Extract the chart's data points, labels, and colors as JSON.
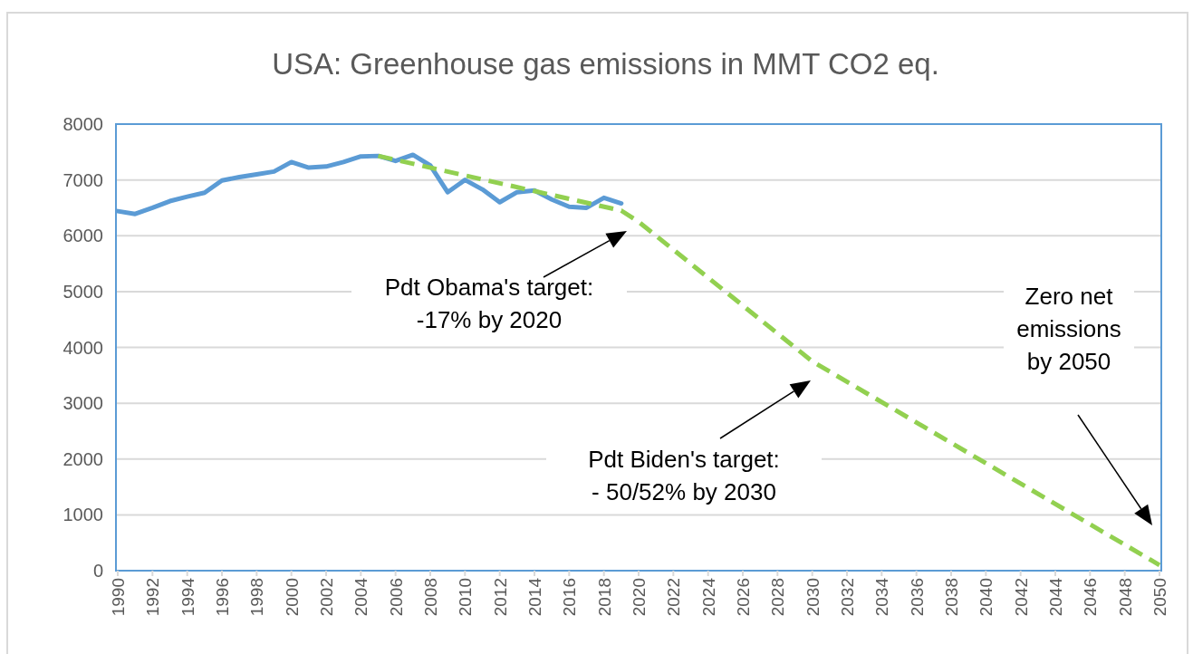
{
  "chart_data": {
    "type": "line",
    "title": "USA: Greenhouse gas emissions in MMT CO2 eq.",
    "x": [
      1990,
      1991,
      1992,
      1993,
      1994,
      1995,
      1996,
      1997,
      1998,
      1999,
      2000,
      2001,
      2002,
      2003,
      2004,
      2005,
      2006,
      2007,
      2008,
      2009,
      2010,
      2011,
      2012,
      2013,
      2014,
      2015,
      2016,
      2017,
      2018,
      2019
    ],
    "series": [
      {
        "color": "#5b9bd5",
        "line_style": "solid",
        "values": [
          6440,
          6390,
          6500,
          6620,
          6700,
          6770,
          6990,
          7050,
          7100,
          7150,
          7320,
          7220,
          7240,
          7320,
          7420,
          7430,
          7340,
          7450,
          7260,
          6780,
          7000,
          6830,
          6600,
          6780,
          6810,
          6650,
          6520,
          6500,
          6680,
          6580
        ]
      },
      {
        "color": "#92d050",
        "line_style": "dashed",
        "x": [
          2005,
          2019,
          2020,
          2030,
          2050
        ],
        "values": [
          7430,
          6450,
          6250,
          3750,
          100
        ]
      }
    ],
    "xlim": [
      1990,
      2050
    ],
    "xticks": [
      1990,
      1992,
      1994,
      1996,
      1998,
      2000,
      2002,
      2004,
      2006,
      2008,
      2010,
      2012,
      2014,
      2016,
      2018,
      2020,
      2022,
      2024,
      2026,
      2028,
      2030,
      2032,
      2034,
      2036,
      2038,
      2040,
      2042,
      2044,
      2046,
      2048,
      2050
    ],
    "ylim": [
      0,
      8000
    ],
    "yticks": [
      0,
      1000,
      2000,
      3000,
      4000,
      5000,
      6000,
      7000,
      8000
    ],
    "grid": "y",
    "marker": "none",
    "annotations": [
      "Pdt Obama's target:\n-17% by 2020",
      "Pdt Biden's target:\n- 50/52% by 2030",
      "Zero net\nemissions\nby 2050"
    ]
  }
}
